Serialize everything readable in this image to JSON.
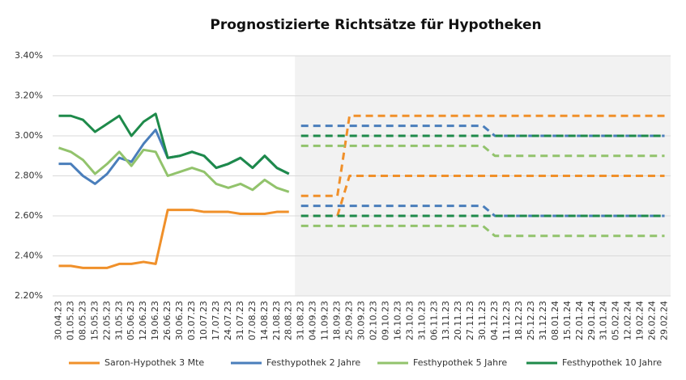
{
  "chart_data": {
    "type": "line",
    "title": "Prognostizierte Richtsätze für Hypotheken",
    "categories": [
      "30.04.23",
      "01.05.23",
      "08.05.23",
      "15.05.23",
      "22.05.23",
      "31.05.23",
      "05.06.23",
      "12.06.23",
      "19.06.23",
      "26.06.23",
      "30.06.23",
      "03.07.23",
      "10.07.23",
      "17.07.23",
      "24.07.23",
      "31.07.23",
      "07.08.23",
      "14.08.23",
      "21.08.23",
      "28.08.23",
      "31.08.23",
      "04.09.23",
      "11.09.23",
      "18.09.23",
      "25.09.23",
      "30.09.23",
      "02.10.23",
      "09.10.23",
      "16.10.23",
      "23.10.23",
      "31.10.23",
      "06.11.23",
      "13.11.23",
      "20.11.23",
      "27.11.23",
      "30.11.23",
      "04.12.23",
      "11.12.23",
      "18.12.23",
      "25.12.23",
      "31.12.23",
      "08.01.24",
      "15.01.24",
      "22.01.24",
      "29.01.24",
      "31.01.24",
      "05.02.24",
      "12.02.24",
      "19.02.24",
      "26.02.24",
      "29.02.24"
    ],
    "series": [
      {
        "name": "Saron-Hypothek 3 Mte",
        "color": "#f0902a",
        "values": [
          2.35,
          2.35,
          2.34,
          2.34,
          2.34,
          2.36,
          2.36,
          2.37,
          2.36,
          2.63,
          2.63,
          2.63,
          2.62,
          2.62,
          2.62,
          2.61,
          2.61,
          2.61,
          2.62,
          2.62,
          null,
          null,
          null,
          null,
          null,
          null,
          null,
          null,
          null,
          null,
          null,
          null,
          null,
          null,
          null,
          null,
          null,
          null,
          null,
          null,
          null,
          null,
          null,
          null,
          null,
          null,
          null,
          null,
          null,
          null,
          null
        ],
        "forecast_high": [
          null,
          null,
          null,
          null,
          null,
          null,
          null,
          null,
          null,
          null,
          null,
          null,
          null,
          null,
          null,
          null,
          null,
          null,
          null,
          null,
          2.7,
          2.7,
          2.7,
          2.7,
          3.1,
          3.1,
          3.1,
          3.1,
          3.1,
          3.1,
          3.1,
          3.1,
          3.1,
          3.1,
          3.1,
          3.1,
          3.1,
          3.1,
          3.1,
          3.1,
          3.1,
          3.1,
          3.1,
          3.1,
          3.1,
          3.1,
          3.1,
          3.1,
          3.1,
          3.1,
          3.1
        ],
        "forecast_low": [
          null,
          null,
          null,
          null,
          null,
          null,
          null,
          null,
          null,
          null,
          null,
          null,
          null,
          null,
          null,
          null,
          null,
          null,
          null,
          null,
          2.6,
          2.6,
          2.6,
          2.6,
          2.8,
          2.8,
          2.8,
          2.8,
          2.8,
          2.8,
          2.8,
          2.8,
          2.8,
          2.8,
          2.8,
          2.8,
          2.8,
          2.8,
          2.8,
          2.8,
          2.8,
          2.8,
          2.8,
          2.8,
          2.8,
          2.8,
          2.8,
          2.8,
          2.8,
          2.8,
          2.8
        ]
      },
      {
        "name": "Festhypothek 2 Jahre",
        "color": "#4a7ebb",
        "values": [
          2.86,
          2.86,
          2.8,
          2.76,
          2.81,
          2.89,
          2.87,
          2.96,
          3.03,
          2.89,
          2.9,
          2.92,
          2.9,
          2.84,
          2.86,
          2.89,
          2.84,
          2.9,
          2.84,
          2.81,
          null,
          null,
          null,
          null,
          null,
          null,
          null,
          null,
          null,
          null,
          null,
          null,
          null,
          null,
          null,
          null,
          null,
          null,
          null,
          null,
          null,
          null,
          null,
          null,
          null,
          null,
          null,
          null,
          null,
          null,
          null
        ],
        "forecast_high": [
          null,
          null,
          null,
          null,
          null,
          null,
          null,
          null,
          null,
          null,
          null,
          null,
          null,
          null,
          null,
          null,
          null,
          null,
          null,
          null,
          3.05,
          3.05,
          3.05,
          3.05,
          3.05,
          3.05,
          3.05,
          3.05,
          3.05,
          3.05,
          3.05,
          3.05,
          3.05,
          3.05,
          3.05,
          3.05,
          3.0,
          3.0,
          3.0,
          3.0,
          3.0,
          3.0,
          3.0,
          3.0,
          3.0,
          3.0,
          3.0,
          3.0,
          3.0,
          3.0,
          3.0
        ],
        "forecast_low": [
          null,
          null,
          null,
          null,
          null,
          null,
          null,
          null,
          null,
          null,
          null,
          null,
          null,
          null,
          null,
          null,
          null,
          null,
          null,
          null,
          2.65,
          2.65,
          2.65,
          2.65,
          2.65,
          2.65,
          2.65,
          2.65,
          2.65,
          2.65,
          2.65,
          2.65,
          2.65,
          2.65,
          2.65,
          2.65,
          2.6,
          2.6,
          2.6,
          2.6,
          2.6,
          2.6,
          2.6,
          2.6,
          2.6,
          2.6,
          2.6,
          2.6,
          2.6,
          2.6,
          2.6
        ]
      },
      {
        "name": "Festhypothek 5 Jahre",
        "color": "#92c36c",
        "values": [
          2.94,
          2.92,
          2.88,
          2.81,
          2.86,
          2.92,
          2.85,
          2.93,
          2.92,
          2.8,
          2.82,
          2.84,
          2.82,
          2.76,
          2.74,
          2.76,
          2.73,
          2.78,
          2.74,
          2.72,
          null,
          null,
          null,
          null,
          null,
          null,
          null,
          null,
          null,
          null,
          null,
          null,
          null,
          null,
          null,
          null,
          null,
          null,
          null,
          null,
          null,
          null,
          null,
          null,
          null,
          null,
          null,
          null,
          null,
          null,
          null
        ],
        "forecast_high": [
          null,
          null,
          null,
          null,
          null,
          null,
          null,
          null,
          null,
          null,
          null,
          null,
          null,
          null,
          null,
          null,
          null,
          null,
          null,
          null,
          2.95,
          2.95,
          2.95,
          2.95,
          2.95,
          2.95,
          2.95,
          2.95,
          2.95,
          2.95,
          2.95,
          2.95,
          2.95,
          2.95,
          2.95,
          2.95,
          2.9,
          2.9,
          2.9,
          2.9,
          2.9,
          2.9,
          2.9,
          2.9,
          2.9,
          2.9,
          2.9,
          2.9,
          2.9,
          2.9,
          2.9
        ],
        "forecast_low": [
          null,
          null,
          null,
          null,
          null,
          null,
          null,
          null,
          null,
          null,
          null,
          null,
          null,
          null,
          null,
          null,
          null,
          null,
          null,
          null,
          2.55,
          2.55,
          2.55,
          2.55,
          2.55,
          2.55,
          2.55,
          2.55,
          2.55,
          2.55,
          2.55,
          2.55,
          2.55,
          2.55,
          2.55,
          2.55,
          2.5,
          2.5,
          2.5,
          2.5,
          2.5,
          2.5,
          2.5,
          2.5,
          2.5,
          2.5,
          2.5,
          2.5,
          2.5,
          2.5,
          2.5
        ]
      },
      {
        "name": "Festhypothek 10 Jahre",
        "color": "#1e8a4a",
        "values": [
          3.1,
          3.1,
          3.08,
          3.02,
          3.06,
          3.1,
          3.0,
          3.07,
          3.11,
          2.89,
          2.9,
          2.92,
          2.9,
          2.84,
          2.86,
          2.89,
          2.84,
          2.9,
          2.84,
          2.81,
          null,
          null,
          null,
          null,
          null,
          null,
          null,
          null,
          null,
          null,
          null,
          null,
          null,
          null,
          null,
          null,
          null,
          null,
          null,
          null,
          null,
          null,
          null,
          null,
          null,
          null,
          null,
          null,
          null,
          null,
          null
        ],
        "forecast_high": [
          null,
          null,
          null,
          null,
          null,
          null,
          null,
          null,
          null,
          null,
          null,
          null,
          null,
          null,
          null,
          null,
          null,
          null,
          null,
          null,
          3.0,
          3.0,
          3.0,
          3.0,
          3.0,
          3.0,
          3.0,
          3.0,
          3.0,
          3.0,
          3.0,
          3.0,
          3.0,
          3.0,
          3.0,
          3.0,
          3.0,
          3.0,
          3.0,
          3.0,
          3.0,
          3.0,
          3.0,
          3.0,
          3.0,
          3.0,
          3.0,
          3.0,
          3.0,
          3.0,
          3.0
        ],
        "forecast_low": [
          null,
          null,
          null,
          null,
          null,
          null,
          null,
          null,
          null,
          null,
          null,
          null,
          null,
          null,
          null,
          null,
          null,
          null,
          null,
          null,
          2.6,
          2.6,
          2.6,
          2.6,
          2.6,
          2.6,
          2.6,
          2.6,
          2.6,
          2.6,
          2.6,
          2.6,
          2.6,
          2.6,
          2.6,
          2.6,
          2.6,
          2.6,
          2.6,
          2.6,
          2.6,
          2.6,
          2.6,
          2.6,
          2.6,
          2.6,
          2.6,
          2.6,
          2.6,
          2.6,
          2.6
        ]
      }
    ],
    "ylim": [
      2.2,
      3.4
    ],
    "yticks": [
      {
        "value": 2.2,
        "label": "2.20%"
      },
      {
        "value": 2.4,
        "label": "2.40%"
      },
      {
        "value": 2.6,
        "label": "2.60%"
      },
      {
        "value": 2.8,
        "label": "2.80%"
      },
      {
        "value": 3.0,
        "label": "3.00%"
      },
      {
        "value": 3.2,
        "label": "3.20%"
      },
      {
        "value": 3.4,
        "label": "3.40%"
      }
    ],
    "grid": true,
    "legend": "bottom"
  }
}
